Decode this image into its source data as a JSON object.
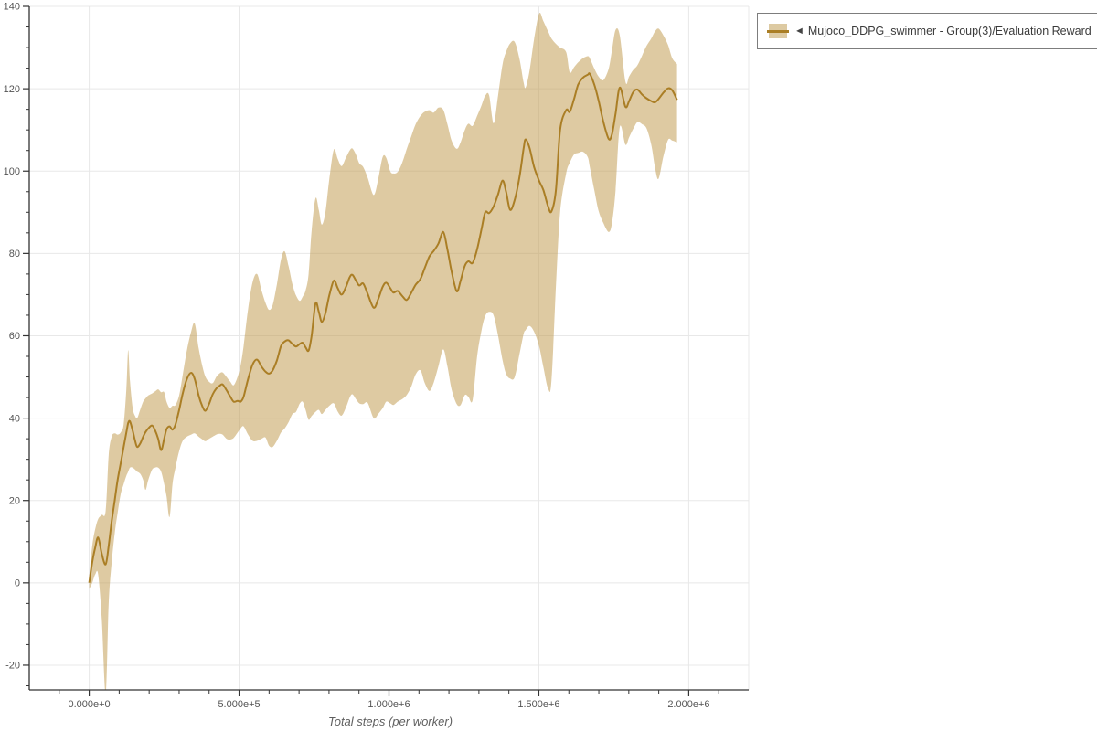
{
  "page": {
    "background": "#ffffff"
  },
  "legend": {
    "collapse_icon": "◄",
    "label": "Mujoco_DDPG_swimmer - Group(3)/Evaluation Reward"
  },
  "colors": {
    "line": "#aa7e25",
    "band": "rgba(190,150,70,0.5)",
    "band_solid": "#ddcaa2",
    "grid": "#e8e8e8",
    "axis": "#333333",
    "tick_label": "#545454"
  },
  "chart_data": {
    "type": "line",
    "title": "",
    "xlabel": "Total steps (per worker)",
    "ylabel": "",
    "x_range": [
      -200000,
      2200000
    ],
    "y_range": [
      -26,
      140
    ],
    "grid": "major-only",
    "legend_position": "top-right-outside",
    "x_ticks": [
      {
        "value": 0,
        "label": "0.000e+0"
      },
      {
        "value": 500000,
        "label": "5.000e+5"
      },
      {
        "value": 1000000,
        "label": "1.000e+6"
      },
      {
        "value": 1500000,
        "label": "1.500e+6"
      },
      {
        "value": 2000000,
        "label": "2.000e+6"
      }
    ],
    "x_minor_step": 100000,
    "y_ticks": [
      {
        "value": -20,
        "label": "-20"
      },
      {
        "value": 0,
        "label": "0"
      },
      {
        "value": 20,
        "label": "20"
      },
      {
        "value": 40,
        "label": "40"
      },
      {
        "value": 60,
        "label": "60"
      },
      {
        "value": 80,
        "label": "80"
      },
      {
        "value": 100,
        "label": "100"
      },
      {
        "value": 120,
        "label": "120"
      },
      {
        "value": 140,
        "label": "140"
      }
    ],
    "y_minor_step": 5,
    "series": [
      {
        "name": "Mujoco_DDPG_swimmer - Group(3)/Evaluation Reward",
        "has_confidence_band": true,
        "x": [
          0,
          10000,
          20000,
          30000,
          42000,
          55000,
          65000,
          75000,
          85000,
          95000,
          105000,
          115000,
          124000,
          130000,
          136000,
          145000,
          153000,
          160000,
          170000,
          180000,
          188000,
          197000,
          210000,
          220000,
          230000,
          240000,
          250000,
          258000,
          268000,
          278000,
          288000,
          300000,
          312000,
          326000,
          340000,
          352000,
          365000,
          378000,
          388000,
          400000,
          412000,
          424000,
          434000,
          445000,
          458000,
          470000,
          482000,
          495000,
          505000,
          515000,
          530000,
          545000,
          560000,
          575000,
          588000,
          600000,
          612000,
          626000,
          640000,
          652000,
          665000,
          678000,
          690000,
          702000,
          712000,
          722000,
          732000,
          742000,
          755000,
          766000,
          776000,
          788000,
          801000,
          816000,
          829000,
          842000,
          856000,
          869000,
          878000,
          890000,
          901000,
          914000,
          929000,
          949000,
          964000,
          979000,
          991000,
          1004000,
          1015000,
          1029000,
          1044000,
          1059000,
          1074000,
          1089000,
          1105000,
          1119000,
          1135000,
          1149000,
          1165000,
          1181000,
          1195000,
          1209000,
          1226000,
          1239000,
          1253000,
          1265000,
          1279000,
          1294000,
          1309000,
          1321000,
          1334000,
          1349000,
          1364000,
          1379000,
          1391000,
          1404000,
          1419000,
          1435000,
          1449000,
          1456000,
          1469000,
          1484000,
          1501000,
          1515000,
          1531000,
          1542000,
          1557000,
          1571000,
          1591000,
          1603000,
          1617000,
          1631000,
          1647000,
          1663000,
          1670000,
          1685000,
          1699000,
          1715000,
          1733000,
          1744000,
          1756000,
          1770000,
          1789000,
          1801000,
          1815000,
          1829000,
          1844000,
          1859000,
          1875000,
          1887000,
          1899000,
          1915000,
          1931000,
          1945000,
          1961000
        ],
        "mean": [
          0,
          5,
          8.5,
          11,
          7,
          4.5,
          9,
          15,
          20,
          25,
          29,
          33,
          36.5,
          38.8,
          39.2,
          37,
          34.5,
          33,
          33.8,
          35.5,
          36.6,
          37.5,
          38.2,
          37,
          35,
          32.2,
          35,
          37.3,
          38,
          37.2,
          38.5,
          42,
          46,
          49.5,
          51,
          49.5,
          45.5,
          42.8,
          41.8,
          43.5,
          45.8,
          47.2,
          47.8,
          48.2,
          46.8,
          45.3,
          44,
          44.2,
          44,
          45.2,
          49.5,
          53,
          54.2,
          52.5,
          51.3,
          50.8,
          51.6,
          54,
          57.5,
          58.6,
          58.9,
          58,
          57.4,
          58,
          58.3,
          57.2,
          56.4,
          60,
          67.9,
          65.8,
          63.4,
          65.5,
          69.8,
          73.4,
          71.6,
          70,
          71.8,
          74.2,
          74.8,
          73.4,
          72.2,
          72.7,
          70.2,
          66.8,
          68.9,
          71.9,
          72.9,
          71.6,
          70.5,
          70.9,
          69.7,
          68.7,
          70.4,
          72.4,
          73.8,
          76.4,
          79.3,
          80.6,
          82.4,
          85.2,
          81,
          75.6,
          70.8,
          73.4,
          77,
          78.1,
          77.7,
          81,
          86,
          90,
          89.8,
          91.4,
          94.4,
          97.7,
          94.9,
          90.6,
          92.9,
          98.4,
          105.4,
          107.7,
          105.6,
          101,
          97.6,
          95.4,
          91.4,
          90.2,
          95.4,
          110,
          114.8,
          114.4,
          117.4,
          121,
          122.7,
          123.4,
          123.6,
          121,
          117.2,
          112,
          107.8,
          109,
          114,
          120.3,
          115.6,
          117,
          119.2,
          119.8,
          118.6,
          117.7,
          117,
          116.7,
          117.5,
          119,
          120.1,
          119.6,
          117.3
        ],
        "band_lower": [
          -1.5,
          0,
          2,
          2,
          -9,
          -27,
          -5,
          5,
          12,
          17,
          21.5,
          24,
          26,
          27,
          28,
          28,
          27.5,
          27,
          26.5,
          25,
          22.6,
          25,
          27.5,
          28,
          28,
          27,
          24,
          21,
          16,
          24,
          28,
          32,
          34.5,
          35.5,
          36,
          36.3,
          35.5,
          34.8,
          34.4,
          35,
          35.5,
          36,
          36.2,
          36,
          35,
          34.8,
          35.2,
          36.5,
          37.5,
          38,
          36,
          34.5,
          34.5,
          35,
          35.3,
          33.3,
          33,
          34.5,
          36.5,
          37.5,
          39,
          41,
          41.5,
          43.5,
          44,
          42,
          39.6,
          40.5,
          41.5,
          42,
          41,
          42,
          43,
          43.6,
          41.6,
          40.6,
          42.5,
          45,
          45.8,
          44.6,
          43.6,
          43.4,
          43.7,
          40,
          41,
          42.4,
          44,
          43.6,
          43.2,
          44,
          44.6,
          45.6,
          47.6,
          50.6,
          51.6,
          48.6,
          46.6,
          48.6,
          52.6,
          56.7,
          52.6,
          47,
          43.4,
          43.2,
          45.6,
          45.2,
          44.4,
          55,
          61.4,
          64.8,
          65.8,
          65,
          60,
          54,
          50.7,
          49.6,
          49.9,
          55.4,
          60.4,
          61.4,
          62.4,
          61,
          57.4,
          52.4,
          47.2,
          49,
          72,
          90,
          99.4,
          102,
          104,
          104.4,
          104.7,
          103.4,
          101,
          95.4,
          90.4,
          87.4,
          85.2,
          87.4,
          95.4,
          110.7,
          106.4,
          108.2,
          110.3,
          111.9,
          111.4,
          110.4,
          106.4,
          101,
          98.1,
          103.4,
          107.6,
          107.4,
          107
        ],
        "band_upper": [
          1.5,
          9,
          13,
          15.5,
          16.5,
          17.5,
          31,
          35.5,
          36.3,
          36,
          36.5,
          38.5,
          47,
          56.5,
          49,
          42.5,
          40.5,
          40,
          42,
          44,
          44.8,
          45.5,
          46,
          46.5,
          47,
          46.3,
          46.3,
          44,
          42.5,
          43,
          43.2,
          45.5,
          50.5,
          56.5,
          61,
          63,
          57,
          52.5,
          50,
          48.8,
          48.5,
          50,
          50.8,
          51.1,
          50,
          48.9,
          48,
          50,
          52.8,
          57.5,
          66.5,
          73,
          75,
          71,
          68,
          66.3,
          67.5,
          72.5,
          78.5,
          80.5,
          77,
          72.5,
          69.8,
          68.5,
          69.5,
          71,
          75,
          85.5,
          93.4,
          90.5,
          87,
          90,
          98,
          105.2,
          103,
          101.2,
          103.2,
          105,
          105.5,
          104,
          101.9,
          101,
          98.4,
          94.2,
          98,
          103.4,
          103.2,
          100,
          99.4,
          99.8,
          102,
          105.3,
          108.4,
          111.4,
          113.4,
          114.4,
          114.8,
          114.2,
          115.4,
          114.9,
          111.4,
          107.4,
          105.4,
          107,
          110,
          111.5,
          111,
          113.4,
          116,
          118.3,
          118.4,
          111.6,
          118.4,
          126,
          129,
          131,
          131.4,
          127.4,
          121.6,
          120.3,
          124.4,
          132,
          138.3,
          136.4,
          133.9,
          132.2,
          130.9,
          130,
          128.9,
          124,
          125.2,
          126.4,
          127.4,
          127.9,
          127.4,
          124.9,
          123,
          122.1,
          124.9,
          129.4,
          134.3,
          132.9,
          121.7,
          123,
          124.6,
          125.7,
          128,
          130.4,
          132.2,
          133.9,
          134.6,
          133,
          130.6,
          127.4,
          126
        ]
      }
    ]
  }
}
